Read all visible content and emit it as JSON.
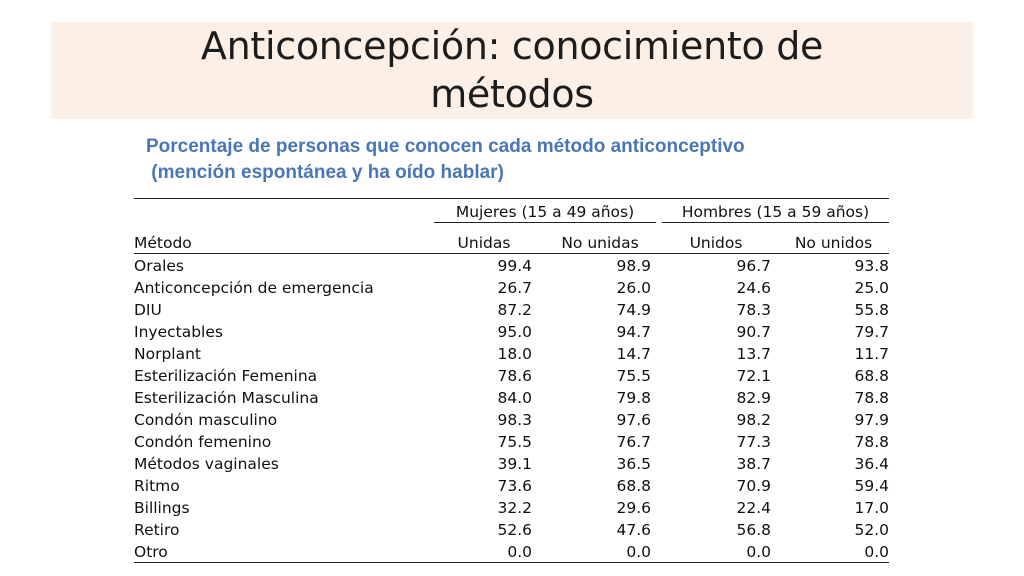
{
  "slide": {
    "title_line1": "Anticoncepción: conocimiento de",
    "title_line2": "métodos",
    "subtitle_line1": "Porcentaje de personas que conocen cada método anticonceptivo",
    "subtitle_line2": " (mención espontánea y ha oído hablar)",
    "title_band_color": "#fbefe6",
    "subtitle_color": "#4a77b4"
  },
  "table": {
    "group_headers": [
      "Mujeres (15 a 49 años)",
      "Hombres (15 a 59 años)"
    ],
    "column_headers": [
      "Método",
      "Unidas",
      "No unidas",
      "Unidos",
      "No unidos"
    ],
    "rows": [
      {
        "name": "Orales",
        "values": [
          "99.4",
          "98.9",
          "96.7",
          "93.8"
        ]
      },
      {
        "name": "Anticoncepción de emergencia",
        "values": [
          "26.7",
          "26.0",
          "24.6",
          "25.0"
        ]
      },
      {
        "name": "DIU",
        "values": [
          "87.2",
          "74.9",
          "78.3",
          "55.8"
        ]
      },
      {
        "name": "Inyectables",
        "values": [
          "95.0",
          "94.7",
          "90.7",
          "79.7"
        ]
      },
      {
        "name": "Norplant",
        "values": [
          "18.0",
          "14.7",
          "13.7",
          "11.7"
        ]
      },
      {
        "name": "Esterilización Femenina",
        "values": [
          "78.6",
          "75.5",
          "72.1",
          "68.8"
        ]
      },
      {
        "name": "Esterilización Masculina",
        "values": [
          "84.0",
          "79.8",
          "82.9",
          "78.8"
        ]
      },
      {
        "name": "Condón masculino",
        "values": [
          "98.3",
          "97.6",
          "98.2",
          "97.9"
        ]
      },
      {
        "name": "Condón femenino",
        "values": [
          "75.5",
          "76.7",
          "77.3",
          "78.8"
        ]
      },
      {
        "name": "Métodos vaginales",
        "values": [
          "39.1",
          "36.5",
          "38.7",
          "36.4"
        ]
      },
      {
        "name": "Ritmo",
        "values": [
          "73.6",
          "68.8",
          "70.9",
          "59.4"
        ]
      },
      {
        "name": "Billings",
        "values": [
          "32.2",
          "29.6",
          "22.4",
          "17.0"
        ]
      },
      {
        "name": "Retiro",
        "values": [
          "52.6",
          "47.6",
          "56.8",
          "52.0"
        ]
      },
      {
        "name": "Otro",
        "values": [
          "0.0",
          "0.0",
          "0.0",
          "0.0"
        ]
      }
    ]
  }
}
